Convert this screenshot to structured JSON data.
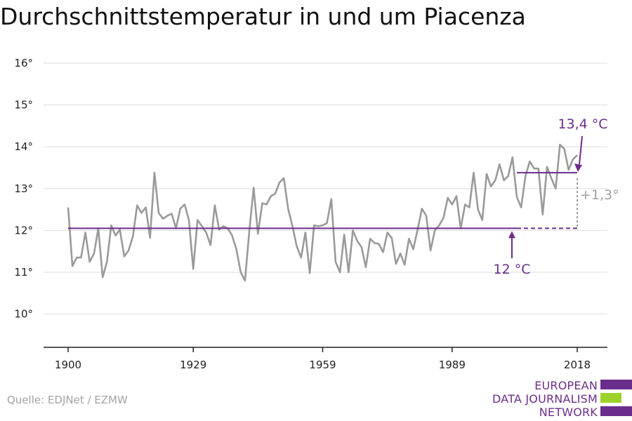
{
  "title": "Durchschnittstemperatur in und um Piacenza",
  "source": "Quelle: EDJNet / EZMW",
  "logo": {
    "lines": [
      "EUROPEAN",
      "DATA JOURNALISM",
      "NETWORK"
    ],
    "colors": {
      "purple": "#6b2d8c",
      "green": "#9dd22b"
    }
  },
  "colors": {
    "series": "#9a9a9a",
    "average": "#6b2d8c",
    "difference": "#9a9a9a",
    "grid": "#dddddd",
    "axis": "#222222"
  },
  "chart_data": {
    "type": "line",
    "title": "Durchschnittstemperatur in und um Piacenza",
    "xlabel": "",
    "ylabel": "",
    "xlim": [
      1900,
      2018
    ],
    "ylim": [
      9.3,
      16.3
    ],
    "x_ticks": [
      1900,
      1929,
      1959,
      1989,
      2018
    ],
    "y_ticks": [
      10,
      11,
      12,
      13,
      14,
      15,
      16
    ],
    "y_tick_labels": [
      "10°",
      "11°",
      "12°",
      "13°",
      "14°",
      "15°",
      "16°"
    ],
    "grid": "horizontal",
    "series": [
      {
        "x": [
          1900,
          1901,
          1902,
          1903,
          1904,
          1905,
          1906,
          1907,
          1908,
          1909,
          1910,
          1911,
          1912,
          1913,
          1914,
          1915,
          1916,
          1917,
          1918,
          1919,
          1920,
          1921,
          1922,
          1923,
          1924,
          1925,
          1926,
          1927,
          1928,
          1929,
          1930,
          1931,
          1932,
          1933,
          1934,
          1935,
          1936,
          1937,
          1938,
          1939,
          1940,
          1941,
          1942,
          1943,
          1944,
          1945,
          1946,
          1947,
          1948,
          1949,
          1950,
          1951,
          1952,
          1953,
          1954,
          1955,
          1956,
          1957,
          1958,
          1959,
          1960,
          1961,
          1962,
          1963,
          1964,
          1965,
          1966,
          1967,
          1968,
          1969,
          1970,
          1971,
          1972,
          1973,
          1974,
          1975,
          1976,
          1977,
          1978,
          1979,
          1980,
          1981,
          1982,
          1983,
          1984,
          1985,
          1986,
          1987,
          1988,
          1989,
          1990,
          1991,
          1992,
          1993,
          1994,
          1995,
          1996,
          1997,
          1998,
          1999,
          2000,
          2001,
          2002,
          2003,
          2004,
          2005,
          2006,
          2007,
          2008,
          2009,
          2010,
          2011,
          2012,
          2013,
          2014,
          2015,
          2016,
          2017,
          2018
        ],
        "values": [
          12.55,
          11.15,
          11.35,
          11.35,
          11.95,
          11.25,
          11.45,
          12.05,
          10.88,
          11.25,
          12.12,
          11.88,
          12.02,
          11.38,
          11.52,
          11.85,
          12.6,
          12.42,
          12.55,
          11.82,
          13.38,
          12.42,
          12.28,
          12.35,
          12.4,
          12.05,
          12.52,
          12.62,
          12.25,
          11.08,
          12.25,
          12.1,
          11.95,
          11.65,
          12.6,
          12.02,
          12.1,
          12.05,
          11.88,
          11.55,
          11.0,
          10.8,
          12.0,
          13.02,
          11.92,
          12.65,
          12.62,
          12.82,
          12.88,
          13.15,
          13.25,
          12.52,
          12.1,
          11.62,
          11.35,
          11.95,
          10.98,
          12.12,
          12.1,
          12.12,
          12.18,
          12.75,
          11.25,
          11.0,
          11.9,
          11.0,
          12.0,
          11.75,
          11.6,
          11.12,
          11.8,
          11.7,
          11.68,
          11.48,
          11.95,
          11.82,
          11.2,
          11.45,
          11.18,
          11.8,
          11.55,
          12.02,
          12.52,
          12.35,
          11.52,
          12.0,
          12.12,
          12.3,
          12.78,
          12.62,
          12.82,
          12.05,
          12.62,
          12.55,
          13.38,
          12.5,
          12.25,
          13.35,
          13.05,
          13.2,
          13.58,
          13.2,
          13.3,
          13.75,
          12.8,
          12.55,
          13.3,
          13.65,
          13.48,
          13.48,
          12.38,
          13.52,
          13.25,
          13.0,
          14.05,
          13.95,
          13.45,
          13.7,
          13.8
        ]
      }
    ],
    "reference_lines": [
      {
        "label": "12 °C",
        "value": 12.05,
        "x_start": 1900,
        "x_end": 2004,
        "dashed_end": 2018
      },
      {
        "label": "13,4 °C",
        "value": 13.38,
        "x_start": 2004,
        "x_end": 2018
      }
    ],
    "annotations": [
      {
        "text": "13,4 °C",
        "x": 2018,
        "y": 13.38
      },
      {
        "text": "12 °C",
        "x": 2004,
        "y": 12.05
      },
      {
        "text": "+1,3°",
        "x": 2018,
        "y": 12.7
      }
    ]
  }
}
